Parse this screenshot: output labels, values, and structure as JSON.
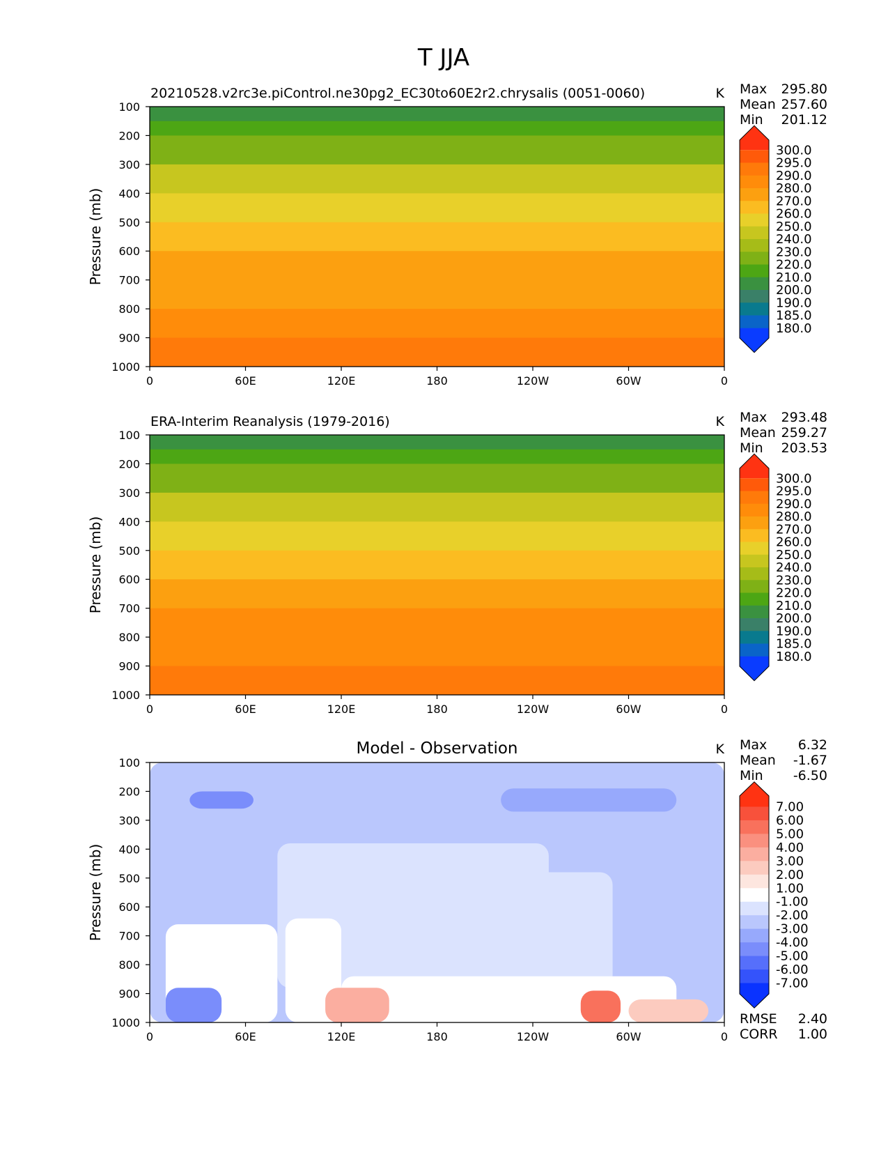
{
  "figure": {
    "title": "T JJA"
  },
  "chart_data": [
    {
      "type": "contour",
      "title": "20210528.v2rc3e.piControl.ne30pg2_EC30to60E2r2.chrysalis (0051-0060)",
      "units": "K",
      "ylabel": "Pressure (mb)",
      "y_axis": "inverted, pressure",
      "x_ticks": [
        "0",
        "60E",
        "120E",
        "180",
        "120W",
        "60W",
        "0"
      ],
      "y_ticks": [
        "100",
        "200",
        "300",
        "400",
        "500",
        "600",
        "700",
        "800",
        "900",
        "1000"
      ],
      "ylim": [
        100,
        1000
      ],
      "stats": {
        "Max": "295.80",
        "Mean": "257.60",
        "Min": "201.12"
      },
      "stat_labels": [
        "Max",
        "Mean",
        "Min"
      ],
      "colorbar": {
        "labels": [
          "300.0",
          "295.0",
          "290.0",
          "280.0",
          "270.0",
          "260.0",
          "250.0",
          "240.0",
          "230.0",
          "220.0",
          "210.0",
          "200.0",
          "190.0",
          "185.0",
          "180.0"
        ],
        "colors": [
          "#ff3312",
          "#ff5a0a",
          "#ff7a0a",
          "#ff8c0a",
          "#fca010",
          "#fbbc21",
          "#e8d02a",
          "#c7c61f",
          "#a6bc18",
          "#7fb116",
          "#4da614",
          "#3a9140",
          "#3a8068",
          "#097a8e",
          "#0a64c8",
          "#0a3cff"
        ],
        "extend": "both"
      },
      "levels": [
        {
          "p": 100,
          "t": 201
        },
        {
          "p": 150,
          "t": 210
        },
        {
          "p": 200,
          "t": 220
        },
        {
          "p": 300,
          "t": 234
        },
        {
          "p": 400,
          "t": 248
        },
        {
          "p": 500,
          "t": 260
        },
        {
          "p": 600,
          "t": 268
        },
        {
          "p": 700,
          "t": 276
        },
        {
          "p": 800,
          "t": 282
        },
        {
          "p": 900,
          "t": 288
        },
        {
          "p": 1000,
          "t": 294
        }
      ]
    },
    {
      "type": "contour",
      "title": "ERA-Interim Reanalysis (1979-2016)",
      "units": "K",
      "ylabel": "Pressure (mb)",
      "y_axis": "inverted, pressure",
      "x_ticks": [
        "0",
        "60E",
        "120E",
        "180",
        "120W",
        "60W",
        "0"
      ],
      "y_ticks": [
        "100",
        "200",
        "300",
        "400",
        "500",
        "600",
        "700",
        "800",
        "900",
        "1000"
      ],
      "ylim": [
        100,
        1000
      ],
      "stats": {
        "Max": "293.48",
        "Mean": "259.27",
        "Min": "203.53"
      },
      "stat_labels": [
        "Max",
        "Mean",
        "Min"
      ],
      "colorbar": {
        "labels": [
          "300.0",
          "295.0",
          "290.0",
          "280.0",
          "270.0",
          "260.0",
          "250.0",
          "240.0",
          "230.0",
          "220.0",
          "210.0",
          "200.0",
          "190.0",
          "185.0",
          "180.0"
        ],
        "colors": [
          "#ff3312",
          "#ff5a0a",
          "#ff7a0a",
          "#ff8c0a",
          "#fca010",
          "#fbbc21",
          "#e8d02a",
          "#c7c61f",
          "#a6bc18",
          "#7fb116",
          "#4da614",
          "#3a9140",
          "#3a8068",
          "#097a8e",
          "#0a64c8",
          "#0a3cff"
        ],
        "extend": "both"
      },
      "levels": [
        {
          "p": 100,
          "t": 204
        },
        {
          "p": 150,
          "t": 212
        },
        {
          "p": 200,
          "t": 222
        },
        {
          "p": 300,
          "t": 236
        },
        {
          "p": 400,
          "t": 249
        },
        {
          "p": 500,
          "t": 261
        },
        {
          "p": 600,
          "t": 270
        },
        {
          "p": 700,
          "t": 277
        },
        {
          "p": 800,
          "t": 283
        },
        {
          "p": 900,
          "t": 288
        },
        {
          "p": 1000,
          "t": 292
        }
      ]
    },
    {
      "type": "contour",
      "title": "Model - Observation",
      "units": "K",
      "ylabel": "Pressure (mb)",
      "y_axis": "inverted, pressure",
      "x_ticks": [
        "0",
        "60E",
        "120E",
        "180",
        "120W",
        "60W",
        "0"
      ],
      "y_ticks": [
        "100",
        "200",
        "300",
        "400",
        "500",
        "600",
        "700",
        "800",
        "900",
        "1000"
      ],
      "ylim": [
        100,
        1000
      ],
      "stats": {
        "Max": "6.32",
        "Mean": "-1.67",
        "Min": "-6.50"
      },
      "stat_labels": [
        "Max",
        "Mean",
        "Min"
      ],
      "extra_stats": {
        "RMSE": "2.40",
        "CORR": "1.00"
      },
      "extra_stat_labels": [
        "RMSE",
        "CORR"
      ],
      "colorbar": {
        "labels": [
          "7.00",
          "6.00",
          "5.00",
          "4.00",
          "3.00",
          "2.00",
          "1.00",
          "-1.00",
          "-2.00",
          "-3.00",
          "-4.00",
          "-5.00",
          "-6.00",
          "-7.00"
        ],
        "colors": [
          "#ff3312",
          "#f8513b",
          "#f9715c",
          "#fa907f",
          "#fbaea0",
          "#fccbbf",
          "#fde6df",
          "#ffffff",
          "#dbe3fe",
          "#bac7fd",
          "#97a9fc",
          "#7a8dfb",
          "#566ffb",
          "#3453fb",
          "#0a33ff"
        ],
        "extend": "both"
      },
      "regions": [
        {
          "lon": [
            0,
            360
          ],
          "p": [
            100,
            1000
          ],
          "value": -2.5
        },
        {
          "lon": [
            80,
            250
          ],
          "p": [
            380,
            880
          ],
          "value": -1.5
        },
        {
          "lon": [
            205,
            290
          ],
          "p": [
            480,
            880
          ],
          "value": -1.5
        },
        {
          "lon": [
            10,
            80
          ],
          "p": [
            660,
            1000
          ],
          "value": 0
        },
        {
          "lon": [
            85,
            120
          ],
          "p": [
            640,
            1000
          ],
          "value": 0
        },
        {
          "lon": [
            120,
            330
          ],
          "p": [
            840,
            1000
          ],
          "value": 0
        },
        {
          "lon": [
            25,
            65
          ],
          "p": [
            200,
            260
          ],
          "value": -4.5
        },
        {
          "lon": [
            220,
            330
          ],
          "p": [
            190,
            270
          ],
          "value": -3.5
        },
        {
          "lon": [
            10,
            45
          ],
          "p": [
            880,
            1000
          ],
          "value": -4.5
        },
        {
          "lon": [
            110,
            150
          ],
          "p": [
            880,
            1000
          ],
          "value": 3.5
        },
        {
          "lon": [
            270,
            295
          ],
          "p": [
            890,
            1000
          ],
          "value": 5.5
        },
        {
          "lon": [
            300,
            350
          ],
          "p": [
            920,
            1000
          ],
          "value": 2.5
        }
      ]
    }
  ]
}
